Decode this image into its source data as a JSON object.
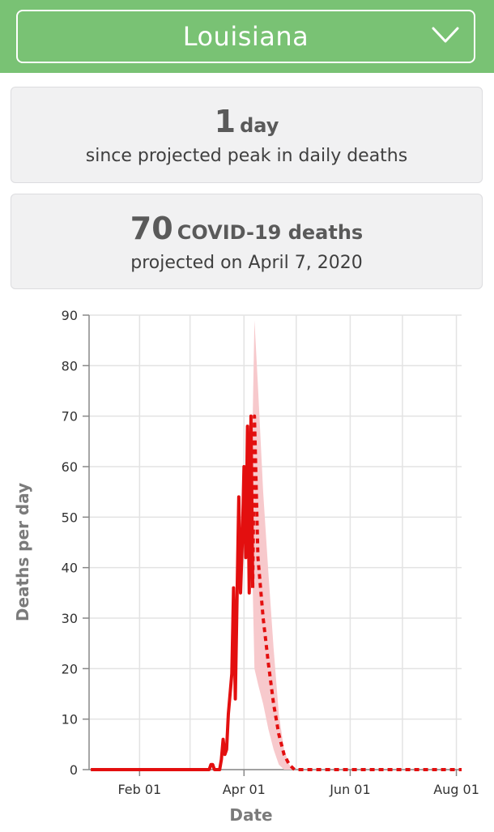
{
  "header": {
    "state_selected": "Louisiana",
    "chevron_icon": "chevron-down-icon",
    "bg_color": "#79c274"
  },
  "cards": {
    "peak": {
      "value": "1",
      "unit": "day",
      "subtitle": "since projected peak in daily deaths"
    },
    "deaths": {
      "value": "70",
      "unit": "COVID-19 deaths",
      "subtitle": "projected on April 7, 2020"
    }
  },
  "chart_data": {
    "type": "line",
    "xlabel": "Date",
    "ylabel": "Deaths per day",
    "ylim": [
      0,
      90
    ],
    "yticks": [
      0,
      10,
      20,
      30,
      40,
      50,
      60,
      70,
      80,
      90
    ],
    "xlim": [
      "2020-01-03",
      "2020-08-04"
    ],
    "xticks": [
      {
        "label": "Feb 01",
        "date": "2020-02-01"
      },
      {
        "label": "Apr 01",
        "date": "2020-04-01"
      },
      {
        "label": "Jun 01",
        "date": "2020-06-01"
      },
      {
        "label": "Aug 01",
        "date": "2020-08-01"
      }
    ],
    "grid": true,
    "series": [
      {
        "style": "solid",
        "color": "#e30f0f",
        "points": [
          [
            "2020-01-04",
            0
          ],
          [
            "2020-03-12",
            0
          ],
          [
            "2020-03-13",
            1
          ],
          [
            "2020-03-14",
            1
          ],
          [
            "2020-03-15",
            0
          ],
          [
            "2020-03-16",
            0
          ],
          [
            "2020-03-17",
            0
          ],
          [
            "2020-03-18",
            0
          ],
          [
            "2020-03-19",
            2
          ],
          [
            "2020-03-20",
            6
          ],
          [
            "2020-03-21",
            3
          ],
          [
            "2020-03-22",
            4
          ],
          [
            "2020-03-23",
            11
          ],
          [
            "2020-03-24",
            15
          ],
          [
            "2020-03-25",
            19
          ],
          [
            "2020-03-26",
            36
          ],
          [
            "2020-03-27",
            14
          ],
          [
            "2020-03-28",
            34
          ],
          [
            "2020-03-29",
            54
          ],
          [
            "2020-03-30",
            35
          ],
          [
            "2020-03-31",
            45
          ],
          [
            "2020-04-01",
            60
          ],
          [
            "2020-04-02",
            42
          ],
          [
            "2020-04-03",
            68
          ],
          [
            "2020-04-04",
            35
          ],
          [
            "2020-04-05",
            70
          ],
          [
            "2020-04-06",
            36
          ]
        ]
      },
      {
        "style": "dashed",
        "color": "#e30f0f",
        "points": [
          [
            "2020-04-06",
            36
          ],
          [
            "2020-04-07",
            70
          ],
          [
            "2020-04-09",
            42
          ],
          [
            "2020-04-12",
            30
          ],
          [
            "2020-04-15",
            21
          ],
          [
            "2020-04-18",
            13
          ],
          [
            "2020-04-21",
            7
          ],
          [
            "2020-04-24",
            3
          ],
          [
            "2020-04-27",
            1
          ],
          [
            "2020-04-30",
            0
          ],
          [
            "2020-08-04",
            0
          ]
        ]
      }
    ],
    "uncertainty_band": {
      "color": "#f7c9cc",
      "upper": [
        [
          "2020-04-06",
          70
        ],
        [
          "2020-04-07",
          89
        ],
        [
          "2020-04-09",
          76
        ],
        [
          "2020-04-12",
          55
        ],
        [
          "2020-04-15",
          39
        ],
        [
          "2020-04-18",
          24
        ],
        [
          "2020-04-21",
          11
        ],
        [
          "2020-04-24",
          4
        ],
        [
          "2020-04-27",
          1
        ],
        [
          "2020-04-30",
          0
        ]
      ],
      "lower": [
        [
          "2020-04-06",
          36
        ],
        [
          "2020-04-07",
          20
        ],
        [
          "2020-04-09",
          17
        ],
        [
          "2020-04-12",
          13
        ],
        [
          "2020-04-15",
          8
        ],
        [
          "2020-04-18",
          4
        ],
        [
          "2020-04-21",
          1
        ],
        [
          "2020-04-24",
          0
        ],
        [
          "2020-04-27",
          0
        ],
        [
          "2020-04-30",
          0
        ]
      ]
    }
  }
}
